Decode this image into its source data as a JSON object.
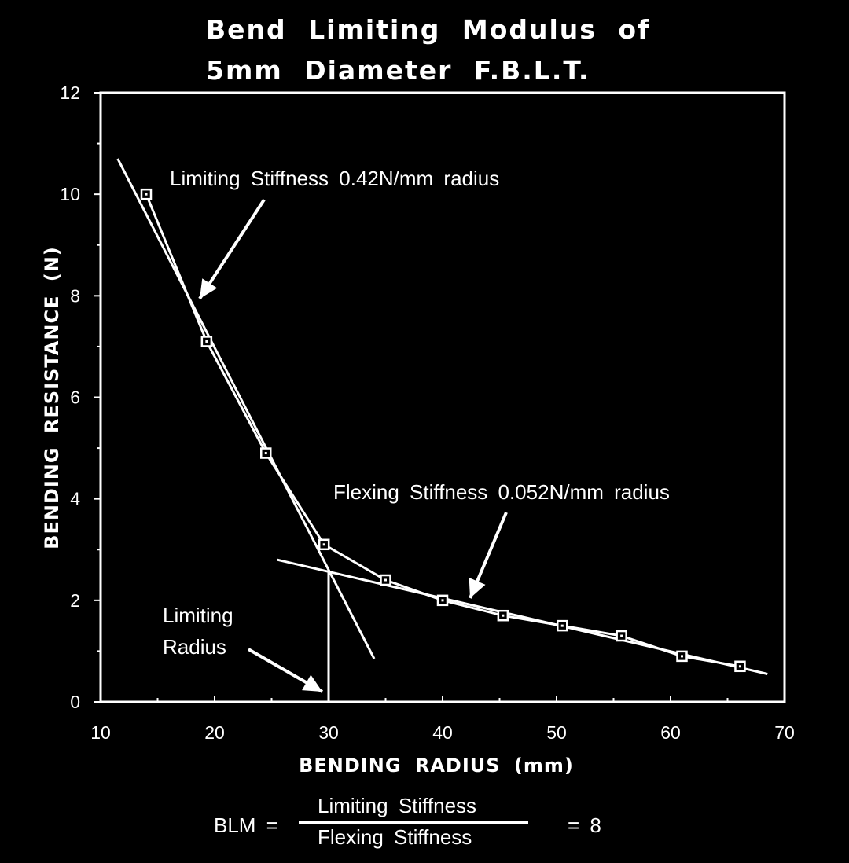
{
  "chart_data": {
    "type": "line",
    "title_lines": [
      "Bend Limiting Modulus of",
      "5mm Diameter F.B.L.T."
    ],
    "xlabel": "BENDING RADIUS (mm)",
    "ylabel": "BENDING RESISTANCE (N)",
    "xlim": [
      10,
      70
    ],
    "ylim": [
      0,
      12
    ],
    "xticks": [
      10,
      20,
      30,
      40,
      50,
      60,
      70
    ],
    "yticks": [
      0,
      2,
      4,
      6,
      8,
      10,
      12
    ],
    "grid": false,
    "series": [
      {
        "marker": "square",
        "x": [
          14,
          19.3,
          24.5,
          29.6,
          35,
          40,
          45.3,
          50.5,
          55.7,
          61,
          66.1
        ],
        "y": [
          10.0,
          7.1,
          4.9,
          3.1,
          2.4,
          2.0,
          1.7,
          1.5,
          1.3,
          0.9,
          0.7
        ]
      }
    ],
    "trend_lines": [
      {
        "x": [
          11.5,
          34
        ],
        "y": [
          10.7,
          0.85
        ]
      },
      {
        "x": [
          25.5,
          68.5
        ],
        "y": [
          2.8,
          0.55
        ]
      }
    ],
    "limiting_radius_x": 30,
    "annotations": [
      {
        "text": "Limiting Stiffness 0.42N/mm radius"
      },
      {
        "text": "Flexing Stiffness 0.052N/mm radius"
      },
      {
        "lines": [
          "Limiting",
          "Radius"
        ]
      }
    ]
  },
  "formula": {
    "lhs": "BLM =",
    "numerator": "Limiting Stiffness",
    "denominator": "Flexing Stiffness",
    "rhs": "= 8"
  }
}
